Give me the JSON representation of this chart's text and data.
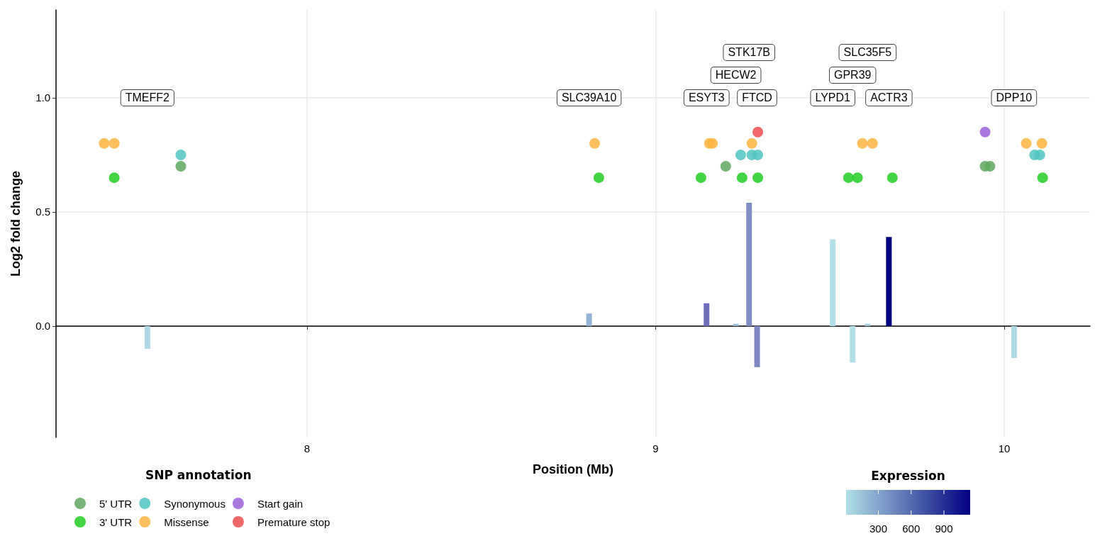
{
  "chart_data": {
    "type": "bar",
    "xlabel": "Position (Mb)",
    "ylabel": "Log2 fold change",
    "legend_title": "SNP annotation",
    "clabel": "Expression",
    "xlim": [
      7.28,
      10.246
    ],
    "ylim": [
      -0.488,
      1.385
    ],
    "xticks": [
      8,
      9,
      10
    ],
    "yticks": [
      {
        "value": 0,
        "label": "0.0"
      },
      {
        "value": 0.5,
        "label": "0.5"
      },
      {
        "value": 1,
        "label": "1.0"
      }
    ],
    "grid": true,
    "legend": "bottom left",
    "marker": "circle",
    "clim": [
      5,
      1140
    ],
    "cticks": [
      300,
      600,
      900
    ],
    "series": [
      {
        "x": [
          7.542,
          8.809,
          9.146,
          9.23,
          9.268,
          9.291,
          9.508,
          9.565,
          9.608,
          9.669,
          10.028
        ],
        "values": [
          -0.1,
          0.055,
          0.1,
          0.01,
          0.54,
          -0.18,
          0.38,
          -0.16,
          0.01,
          0.39,
          -0.14
        ],
        "colors": [
          "#add8e6",
          "#93b4d8",
          "#6e6eb8",
          "#9fbfdc",
          "#7f8cc4",
          "#7f86c4",
          "#b0dfe5",
          "#b0dfe5",
          "#a4cce0",
          "#000080",
          "#addbe4"
        ]
      },
      {
        "type": "scatter",
        "name": "5' UTR",
        "color": "#5ea85e",
        "x": [
          7.638,
          9.201,
          9.945,
          9.959
        ],
        "values": [
          0.7,
          0.7,
          0.7,
          0.7
        ]
      },
      {
        "type": "scatter",
        "name": "3' UTR",
        "color": "#22cc22",
        "x": [
          7.447,
          8.837,
          9.13,
          9.248,
          9.293,
          9.553,
          9.579,
          9.679,
          10.11
        ],
        "values": [
          0.65,
          0.65,
          0.65,
          0.65,
          0.65,
          0.65,
          0.65,
          0.65,
          0.65
        ]
      },
      {
        "type": "scatter",
        "name": "Synonymous",
        "color": "#4fc4bf",
        "x": [
          7.638,
          9.244,
          9.276,
          9.293,
          10.087,
          10.102
        ],
        "values": [
          0.75,
          0.75,
          0.75,
          0.75,
          0.75,
          0.75
        ]
      },
      {
        "type": "scatter",
        "name": "Missense",
        "color": "#ffb43f",
        "x": [
          7.418,
          7.447,
          8.825,
          9.154,
          9.163,
          9.276,
          9.593,
          9.622,
          10.063,
          10.108
        ],
        "values": [
          0.8,
          0.8,
          0.8,
          0.8,
          0.8,
          0.8,
          0.8,
          0.8,
          0.8,
          0.8
        ]
      },
      {
        "type": "scatter",
        "name": "Start gain",
        "color": "#9b5fd8",
        "x": [
          9.945
        ],
        "values": [
          0.85
        ]
      },
      {
        "type": "scatter",
        "name": "Premature stop",
        "color": "#ef4b4b",
        "x": [
          9.293
        ],
        "values": [
          0.85
        ]
      }
    ],
    "annotations": [
      "TMEFF2",
      "SLC39A10",
      "ESYT3",
      "HECW2",
      "STK17B",
      "FTCD",
      "LYPD1",
      "GPR39",
      "SLC35F5",
      "ACTR3",
      "DPP10"
    ]
  }
}
